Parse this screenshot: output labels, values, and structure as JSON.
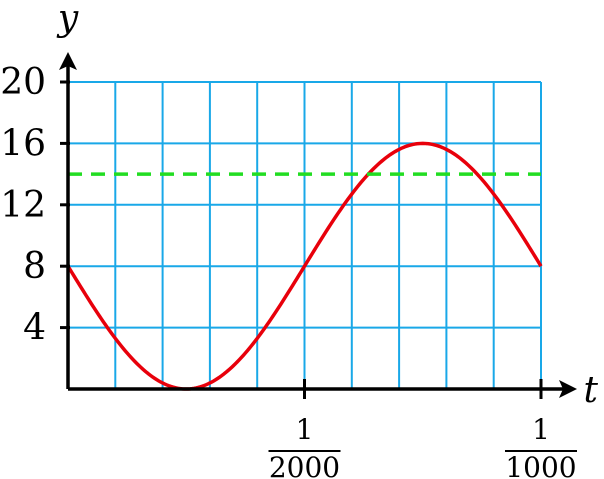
{
  "chart_data": {
    "type": "line",
    "xlabel": "t",
    "ylabel": "y",
    "xlim": [
      0,
      0.001
    ],
    "ylim": [
      0,
      20
    ],
    "grid": true,
    "x_grid_step": 0.0001,
    "y_grid_step": 4,
    "y_ticks": [
      {
        "value": 4,
        "label": "4"
      },
      {
        "value": 8,
        "label": "8"
      },
      {
        "value": 12,
        "label": "12"
      },
      {
        "value": 16,
        "label": "16"
      },
      {
        "value": 20,
        "label": "20"
      }
    ],
    "x_ticks": [
      {
        "value": 0.0005,
        "numerator": "1",
        "denominator": "2000"
      },
      {
        "value": 0.001,
        "numerator": "1",
        "denominator": "1000"
      }
    ],
    "series": [
      {
        "style": "solid",
        "color": "#e8000b",
        "formula": "y = 8 - 8*sin(2000*pi*t)",
        "points": [
          {
            "x": 0,
            "y": 8
          },
          {
            "x": 0.00025,
            "y": 0
          },
          {
            "x": 0.0005,
            "y": 8
          },
          {
            "x": 0.00075,
            "y": 16
          },
          {
            "x": 0.001,
            "y": 8
          }
        ]
      },
      {
        "style": "dashed",
        "color": "#22dd22",
        "points": [
          {
            "x": 0,
            "y": 14
          },
          {
            "x": 0.001,
            "y": 14
          }
        ]
      }
    ],
    "grid_color": "#19a8e8"
  }
}
